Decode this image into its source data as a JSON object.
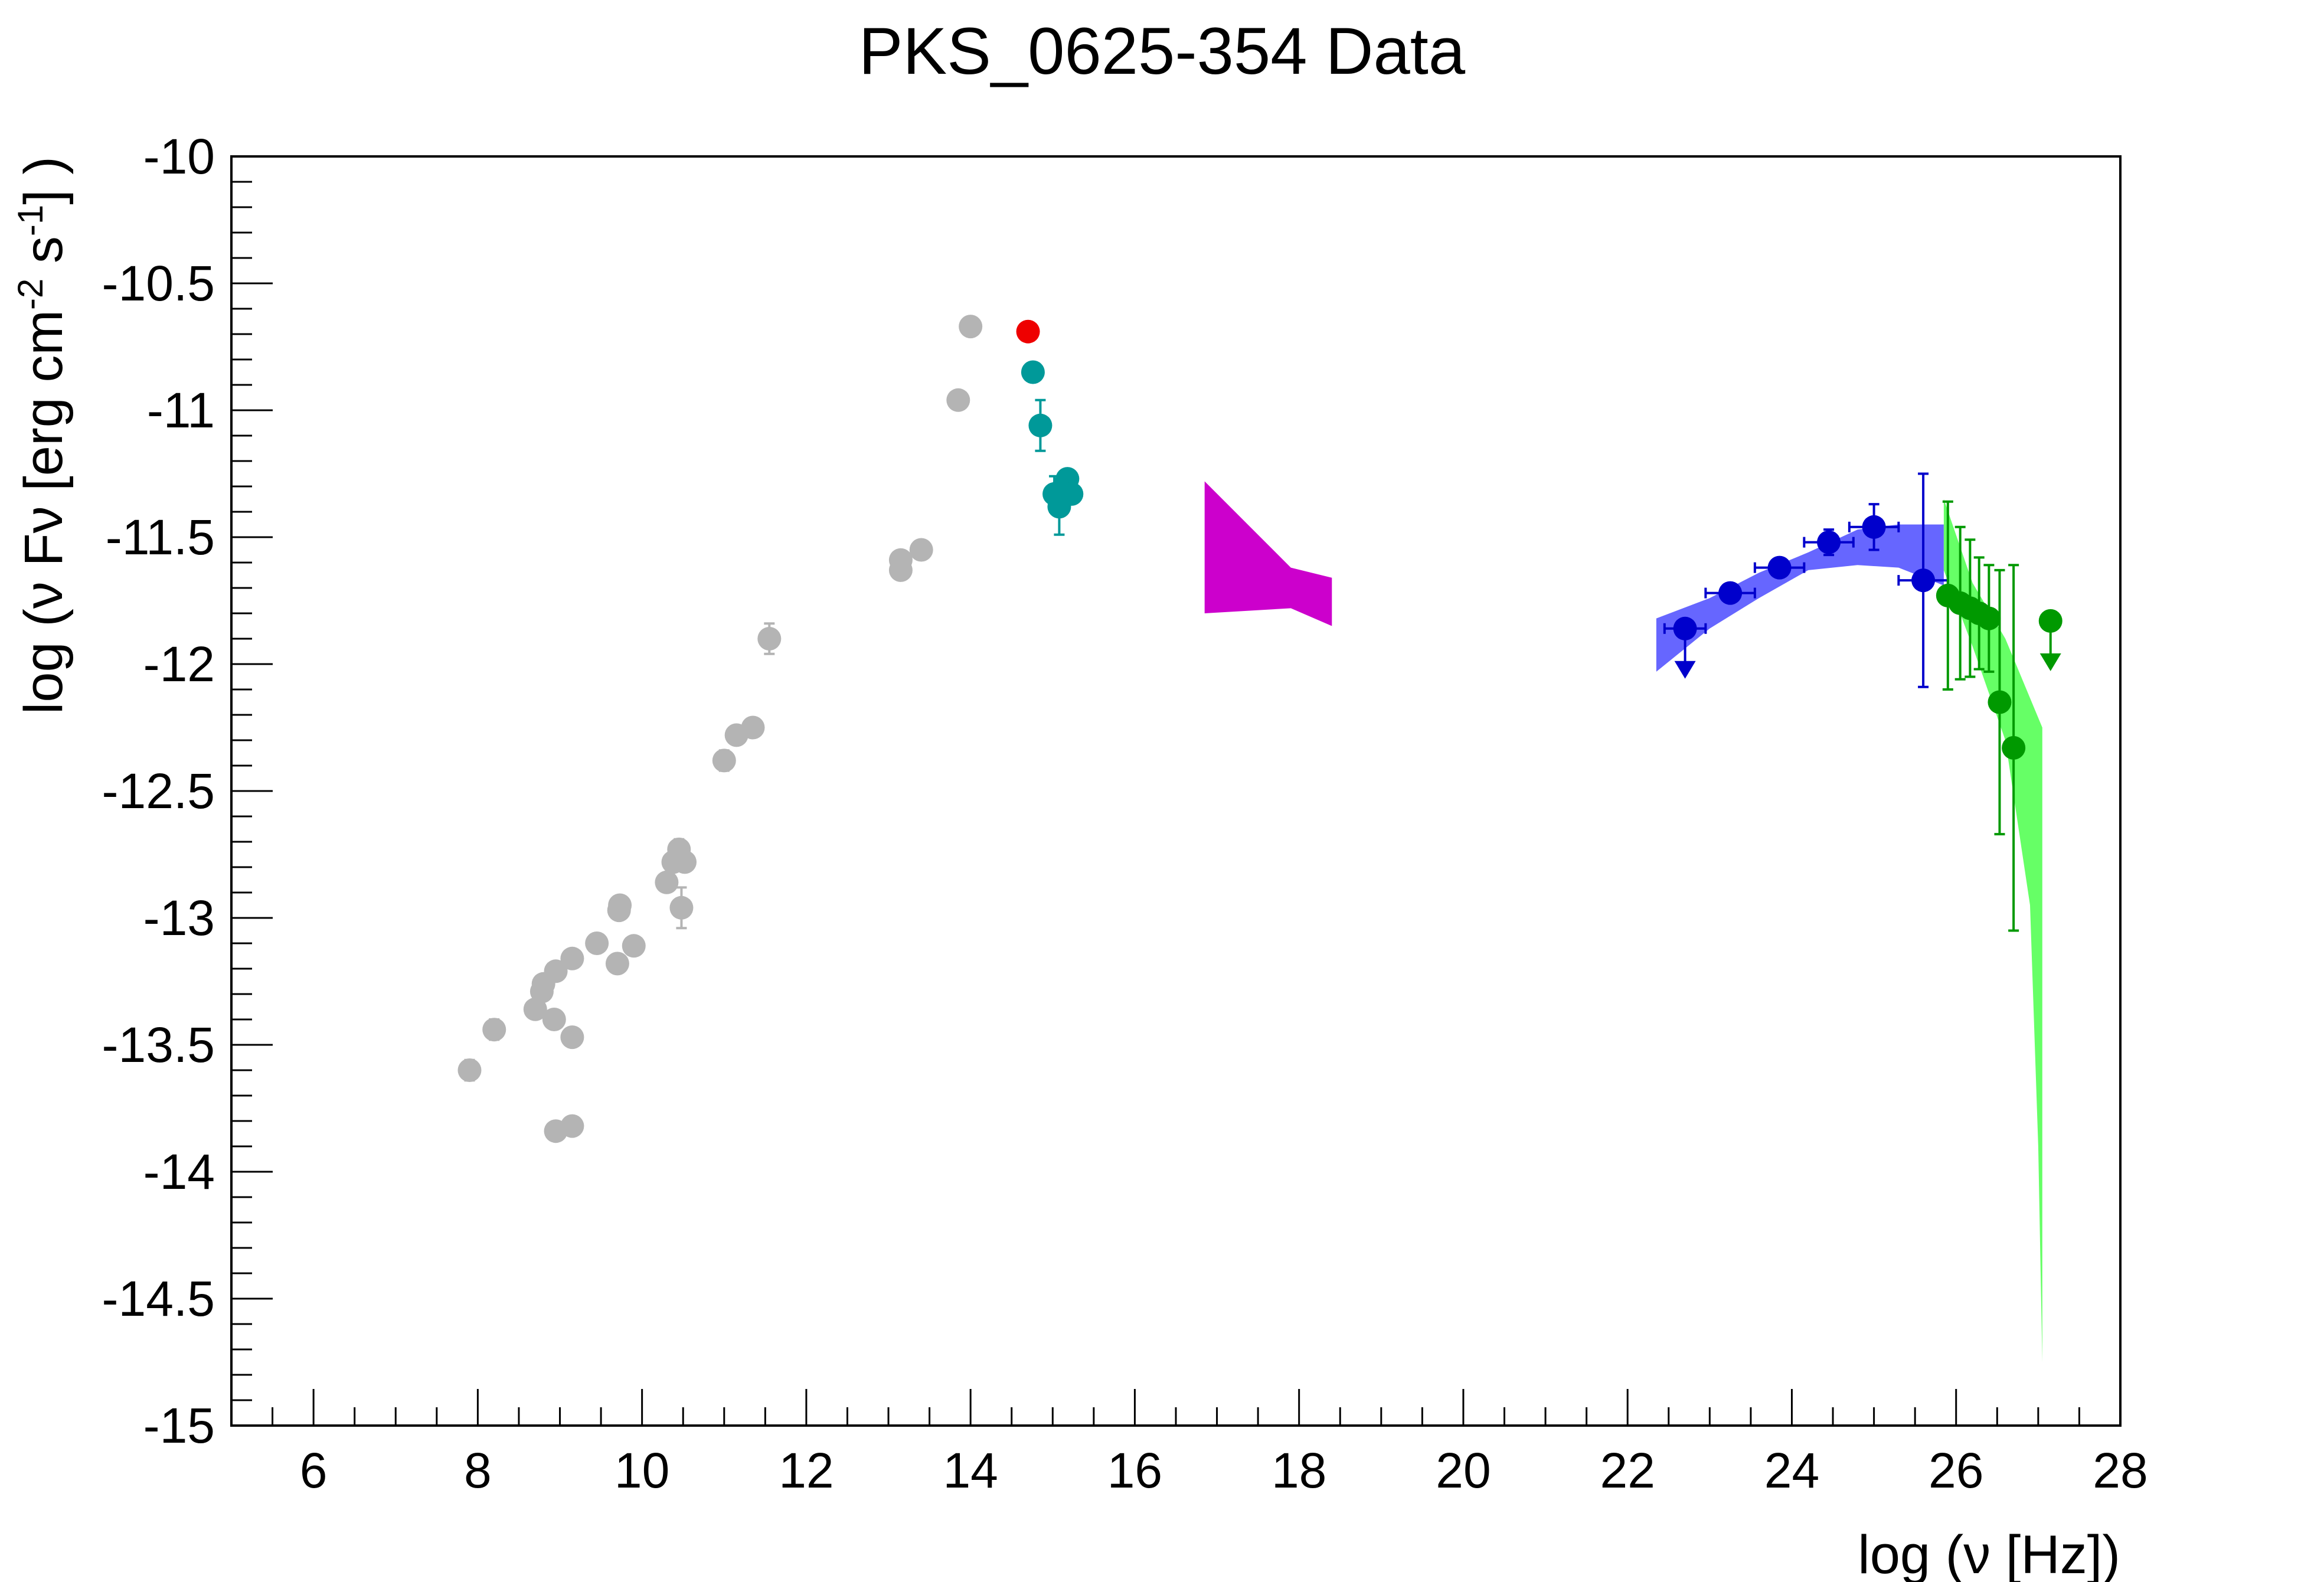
{
  "chart_data": {
    "type": "scatter",
    "title": "PKS_0625-354 Data",
    "xlabel": "log (ν [Hz])",
    "ylabel_parts": {
      "main": "log (ν Fν [erg cm",
      "exp1": "-2",
      "mid": " s",
      "exp2": "-1",
      "end": "] )"
    },
    "xlim": [
      5,
      28
    ],
    "ylim": [
      -15,
      -10
    ],
    "x_ticks": [
      6,
      8,
      10,
      12,
      14,
      16,
      18,
      20,
      22,
      24,
      26,
      28
    ],
    "y_ticks": [
      -10,
      -10.5,
      -11,
      -11.5,
      -12,
      -12.5,
      -13,
      -13.5,
      -14,
      -14.5,
      -15
    ],
    "x_tick_labels": [
      "6",
      "8",
      "10",
      "12",
      "14",
      "16",
      "18",
      "20",
      "22",
      "24",
      "26",
      "28"
    ],
    "y_tick_labels": [
      "-10",
      "-10.5",
      "-11",
      "-11.5",
      "-12",
      "-12.5",
      "-13",
      "-13.5",
      "-14",
      "-14.5",
      "-15"
    ],
    "grid": false,
    "legend": "none",
    "series": [
      {
        "color": "#b4b4b4",
        "points": [
          {
            "x": 7.9,
            "y": -13.6,
            "yerr": 0.04
          },
          {
            "x": 8.2,
            "y": -13.44,
            "yerr": 0.04
          },
          {
            "x": 8.7,
            "y": -13.36
          },
          {
            "x": 8.78,
            "y": -13.29
          },
          {
            "x": 8.8,
            "y": -13.26
          },
          {
            "x": 8.95,
            "y": -13.21
          },
          {
            "x": 8.93,
            "y": -13.4
          },
          {
            "x": 8.95,
            "y": -13.84
          },
          {
            "x": 9.15,
            "y": -13.82
          },
          {
            "x": 9.15,
            "y": -13.16
          },
          {
            "x": 9.15,
            "y": -13.47
          },
          {
            "x": 9.45,
            "y": -13.1
          },
          {
            "x": 9.7,
            "y": -13.18
          },
          {
            "x": 9.72,
            "y": -12.97
          },
          {
            "x": 9.73,
            "y": -12.95
          },
          {
            "x": 9.9,
            "y": -13.11
          },
          {
            "x": 10.3,
            "y": -12.86
          },
          {
            "x": 10.38,
            "y": -12.78
          },
          {
            "x": 10.45,
            "y": -12.73,
            "yerr": 0.04
          },
          {
            "x": 10.48,
            "y": -12.96,
            "yerr": 0.08
          },
          {
            "x": 10.52,
            "y": -12.78
          },
          {
            "x": 11.0,
            "y": -12.38,
            "yerr": 0.04
          },
          {
            "x": 11.15,
            "y": -12.28
          },
          {
            "x": 11.35,
            "y": -12.25
          },
          {
            "x": 11.55,
            "y": -11.9,
            "yerr": 0.06
          },
          {
            "x": 13.15,
            "y": -11.63
          },
          {
            "x": 13.15,
            "y": -11.59
          },
          {
            "x": 13.4,
            "y": -11.55
          },
          {
            "x": 13.85,
            "y": -10.96
          },
          {
            "x": 14.0,
            "y": -10.67
          }
        ]
      },
      {
        "color": "#ee0000",
        "points": [
          {
            "x": 14.7,
            "y": -10.69
          }
        ]
      },
      {
        "color": "#009999",
        "points": [
          {
            "x": 14.76,
            "y": -10.85
          },
          {
            "x": 14.85,
            "y": -11.06,
            "yerr": 0.1
          },
          {
            "x": 15.02,
            "y": -11.33,
            "yerr": 0.07
          },
          {
            "x": 15.08,
            "y": -11.38,
            "yerr": 0.11
          },
          {
            "x": 15.12,
            "y": -11.31,
            "yerr": 0.05
          },
          {
            "x": 15.18,
            "y": -11.27
          },
          {
            "x": 15.23,
            "y": -11.33
          }
        ]
      },
      {
        "color": "#0000cc",
        "points": [
          {
            "x": 22.7,
            "y": -11.86,
            "xerr": 0.25,
            "upper_limit": true
          },
          {
            "x": 23.25,
            "y": -11.72,
            "xerr": 0.3,
            "yerr": 0.03
          },
          {
            "x": 23.85,
            "y": -11.62,
            "xerr": 0.3,
            "yerr": 0.03
          },
          {
            "x": 24.45,
            "y": -11.52,
            "xerr": 0.3,
            "yerr": 0.05
          },
          {
            "x": 25.0,
            "y": -11.46,
            "xerr": 0.3,
            "yerr": 0.09
          },
          {
            "x": 25.6,
            "y": -11.67,
            "xerr": 0.3,
            "yerr": 0.42
          }
        ]
      },
      {
        "color": "#009900",
        "points": [
          {
            "x": 25.9,
            "y": -11.73,
            "yerr": 0.37
          },
          {
            "x": 26.05,
            "y": -11.76,
            "yerr": 0.3
          },
          {
            "x": 26.17,
            "y": -11.78,
            "yerr": 0.27
          },
          {
            "x": 26.28,
            "y": -11.8,
            "yerr": 0.22
          },
          {
            "x": 26.4,
            "y": -11.82,
            "yerr": 0.21
          },
          {
            "x": 26.53,
            "y": -12.15,
            "yerr": 0.52
          },
          {
            "x": 26.7,
            "y": -12.33,
            "yerr": 0.72
          },
          {
            "x": 27.15,
            "y": -11.83,
            "upper_limit": true
          }
        ]
      }
    ],
    "bands": [
      {
        "color": "#cc00cc",
        "polygon": [
          [
            16.85,
            -11.28
          ],
          [
            17.9,
            -11.62
          ],
          [
            18.4,
            -11.66
          ],
          [
            18.4,
            -11.85
          ],
          [
            17.9,
            -11.78
          ],
          [
            16.85,
            -11.8
          ]
        ]
      },
      {
        "color": "#6666ff",
        "upper": [
          [
            22.35,
            -11.82
          ],
          [
            23.0,
            -11.74
          ],
          [
            23.6,
            -11.64
          ],
          [
            24.2,
            -11.56
          ],
          [
            24.8,
            -11.47
          ],
          [
            25.3,
            -11.45
          ],
          [
            25.85,
            -11.45
          ]
        ],
        "lower": [
          [
            22.35,
            -12.03
          ],
          [
            23.0,
            -11.86
          ],
          [
            23.6,
            -11.74
          ],
          [
            24.2,
            -11.63
          ],
          [
            24.8,
            -11.61
          ],
          [
            25.3,
            -11.62
          ],
          [
            25.85,
            -11.69
          ]
        ]
      },
      {
        "color": "#66ff66",
        "upper": [
          [
            25.85,
            -11.35
          ],
          [
            26.2,
            -11.68
          ],
          [
            26.6,
            -11.9
          ],
          [
            27.05,
            -12.25
          ]
        ],
        "lower": [
          [
            25.85,
            -11.63
          ],
          [
            26.2,
            -11.93
          ],
          [
            26.6,
            -12.3
          ],
          [
            26.9,
            -12.95
          ],
          [
            27.0,
            -13.9
          ],
          [
            27.05,
            -14.75
          ]
        ]
      }
    ]
  }
}
